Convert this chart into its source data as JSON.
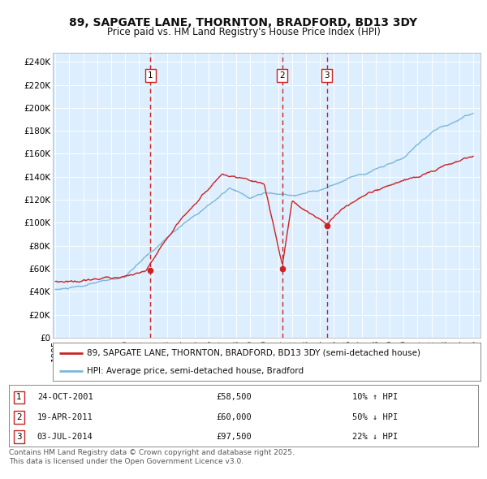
{
  "title": "89, SAPGATE LANE, THORNTON, BRADFORD, BD13 3DY",
  "subtitle": "Price paid vs. HM Land Registry's House Price Index (HPI)",
  "ylabel_ticks": [
    "£0",
    "£20K",
    "£40K",
    "£60K",
    "£80K",
    "£100K",
    "£120K",
    "£140K",
    "£160K",
    "£180K",
    "£200K",
    "£220K",
    "£240K"
  ],
  "ytick_values": [
    0,
    20000,
    40000,
    60000,
    80000,
    100000,
    120000,
    140000,
    160000,
    180000,
    200000,
    220000,
    240000
  ],
  "ylim": [
    0,
    248000
  ],
  "xlim_start": 1994.8,
  "xlim_end": 2025.5,
  "background_color": "#ffffff",
  "plot_bg_color": "#ddeeff",
  "hpi_line_color": "#7ab8d9",
  "price_line_color": "#cc2222",
  "transaction_color": "#cc2222",
  "grid_color": "#ffffff",
  "transactions": [
    {
      "num": 1,
      "date_label": "24-OCT-2001",
      "price": 58500,
      "hpi_pct": "10% ↑ HPI",
      "x": 2001.81
    },
    {
      "num": 2,
      "date_label": "19-APR-2011",
      "price": 60000,
      "hpi_pct": "50% ↓ HPI",
      "x": 2011.3
    },
    {
      "num": 3,
      "date_label": "03-JUL-2014",
      "price": 97500,
      "hpi_pct": "22% ↓ HPI",
      "x": 2014.5
    }
  ],
  "legend_entries": [
    "89, SAPGATE LANE, THORNTON, BRADFORD, BD13 3DY (semi-detached house)",
    "HPI: Average price, semi-detached house, Bradford"
  ],
  "footer": "Contains HM Land Registry data © Crown copyright and database right 2025.\nThis data is licensed under the Open Government Licence v3.0.",
  "title_fontsize": 10,
  "subtitle_fontsize": 8.5,
  "tick_fontsize": 7.5,
  "legend_fontsize": 7.5,
  "footer_fontsize": 6.5
}
